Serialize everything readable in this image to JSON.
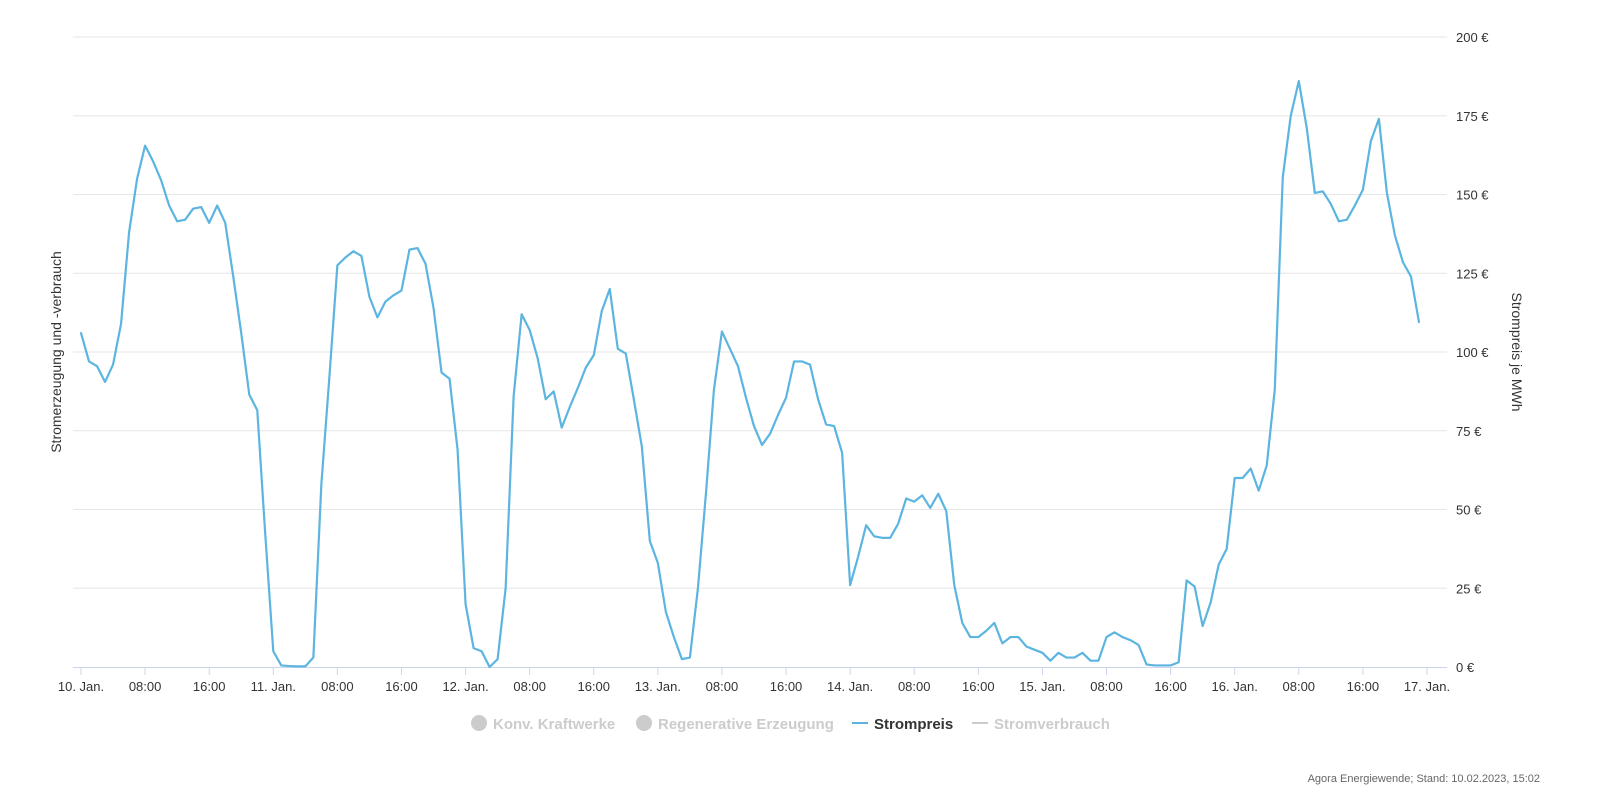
{
  "chart_data": {
    "type": "line",
    "title": "",
    "ylabel_left": "Stromerzeugung und -verbrauch",
    "ylabel_right": "Strompreis je MWh",
    "ylim_right": [
      0,
      200
    ],
    "y_ticks_right": [
      {
        "value": 0,
        "label": "0 €"
      },
      {
        "value": 25,
        "label": "25 €"
      },
      {
        "value": 50,
        "label": "50 €"
      },
      {
        "value": 75,
        "label": "75 €"
      },
      {
        "value": 100,
        "label": "100 €"
      },
      {
        "value": 125,
        "label": "125 €"
      },
      {
        "value": 150,
        "label": "150 €"
      },
      {
        "value": 175,
        "label": "175 €"
      },
      {
        "value": 200,
        "label": "200 €"
      }
    ],
    "x_range_hours": [
      -1,
      170.5
    ],
    "x_ticks": [
      {
        "hour": 0,
        "label": "10. Jan."
      },
      {
        "hour": 8,
        "label": "08:00"
      },
      {
        "hour": 16,
        "label": "16:00"
      },
      {
        "hour": 24,
        "label": "11. Jan."
      },
      {
        "hour": 32,
        "label": "08:00"
      },
      {
        "hour": 40,
        "label": "16:00"
      },
      {
        "hour": 48,
        "label": "12. Jan."
      },
      {
        "hour": 56,
        "label": "08:00"
      },
      {
        "hour": 64,
        "label": "16:00"
      },
      {
        "hour": 72,
        "label": "13. Jan."
      },
      {
        "hour": 80,
        "label": "08:00"
      },
      {
        "hour": 88,
        "label": "16:00"
      },
      {
        "hour": 96,
        "label": "14. Jan."
      },
      {
        "hour": 104,
        "label": "08:00"
      },
      {
        "hour": 112,
        "label": "16:00"
      },
      {
        "hour": 120,
        "label": "15. Jan."
      },
      {
        "hour": 128,
        "label": "08:00"
      },
      {
        "hour": 136,
        "label": "16:00"
      },
      {
        "hour": 144,
        "label": "16. Jan."
      },
      {
        "hour": 152,
        "label": "08:00"
      },
      {
        "hour": 160,
        "label": "16:00"
      },
      {
        "hour": 168,
        "label": "17. Jan."
      }
    ],
    "legend": [
      {
        "name": "Konv. Kraftwerke",
        "symbol": "circle",
        "active": false
      },
      {
        "name": "Regenerative Erzeugung",
        "symbol": "circle",
        "active": false
      },
      {
        "name": "Strompreis",
        "symbol": "line",
        "active": true
      },
      {
        "name": "Stromverbrauch",
        "symbol": "line",
        "active": false
      }
    ],
    "series": [
      {
        "name": "Strompreis",
        "color": "#5bb5e0",
        "x_start_hour": 0,
        "step_hours": 1,
        "values": [
          106,
          97,
          95.5,
          90.5,
          96,
          109,
          138,
          155,
          165.5,
          160.5,
          154.5,
          146.5,
          141.5,
          142,
          145.5,
          146,
          141,
          146.5,
          141,
          124,
          106,
          86.5,
          81.5,
          42,
          5,
          0.5,
          0.3,
          0.2,
          0.2,
          3,
          58,
          92,
          127.5,
          130,
          132,
          130.5,
          117.5,
          111,
          116,
          118,
          119.5,
          132.5,
          133,
          128,
          114,
          93.5,
          91.5,
          69,
          20,
          6,
          5,
          0,
          2.5,
          25,
          86,
          112,
          107,
          98,
          85,
          87.5,
          76,
          82.5,
          88.5,
          95,
          99,
          113,
          120,
          101,
          99.5,
          85,
          70,
          40,
          33,
          17.5,
          9.5,
          2.5,
          3,
          25,
          55,
          88,
          106.5,
          101,
          95.5,
          85.5,
          76.5,
          70.5,
          74,
          80,
          85.5,
          97,
          97,
          96,
          85,
          77,
          76.5,
          68,
          26,
          35,
          45,
          41.5,
          41,
          41,
          45.5,
          53.5,
          52.5,
          54.5,
          50.5,
          55,
          49.5,
          26,
          14,
          9.5,
          9.5,
          11.5,
          14,
          7.5,
          9.5,
          9.5,
          6.5,
          5.5,
          4.5,
          2,
          4.5,
          3,
          3,
          4.5,
          2,
          2,
          9.5,
          11,
          9.5,
          8.5,
          7,
          0.8,
          0.5,
          0.5,
          0.5,
          1.5,
          27.5,
          25.5,
          13,
          20.5,
          32.5,
          37.5,
          60,
          60,
          63,
          56,
          64,
          88,
          155.5,
          175,
          186,
          171,
          150.5,
          151,
          147,
          141.5,
          142,
          146.5,
          151.5,
          167,
          174,
          150.5,
          137,
          128.5,
          124,
          109.5
        ]
      }
    ]
  },
  "colors": {
    "price_line": "#5bb5e0",
    "inactive_legend": "#cccccc",
    "grid": "#e6e6e6",
    "axis": "#ccd6eb"
  },
  "credit": "Agora Energiewende; Stand: 10.02.2023, 15:02"
}
